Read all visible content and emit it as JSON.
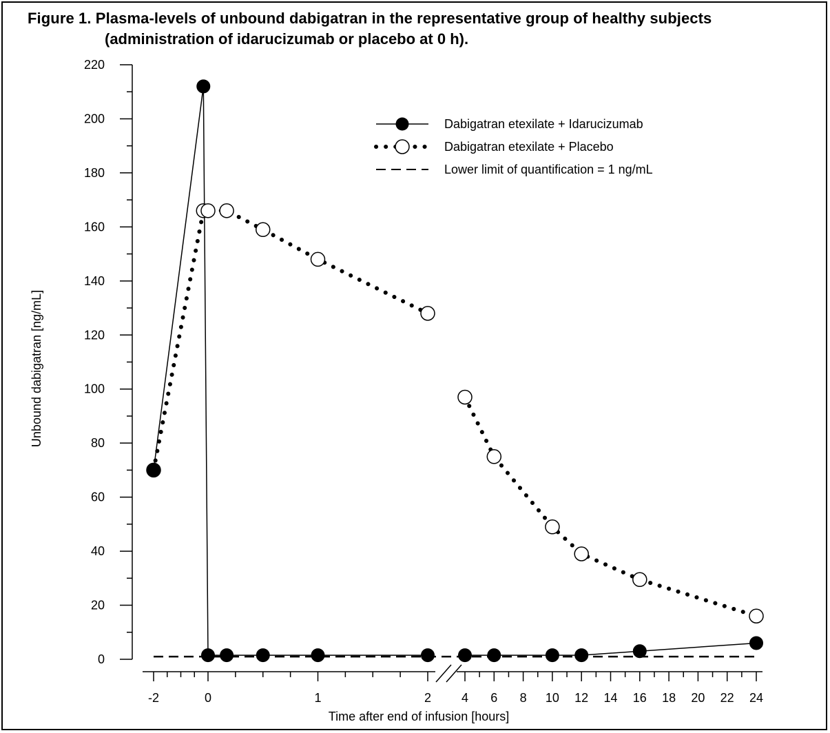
{
  "title_line1": "Figure 1. Plasma-levels of unbound dabigatran in the representative group of healthy subjects",
  "title_line2": "(administration of idarucizumab or placebo at 0 h).",
  "chart_data": {
    "type": "line",
    "title": "Figure 1. Plasma-levels of unbound dabigatran in the representative group of healthy subjects (administration of idarucizumab or placebo at 0 h).",
    "xlabel": "Time after end of infusion [hours]",
    "ylabel": "Unbound dabigatran [ng/mL]",
    "ylim": [
      0,
      220
    ],
    "y_ticks": [
      0,
      20,
      40,
      60,
      80,
      100,
      120,
      140,
      160,
      180,
      200,
      220
    ],
    "x_axis_broken": true,
    "x_break_between": [
      2,
      4
    ],
    "x_ticks_left": [
      -2,
      0,
      1,
      2
    ],
    "x_ticks_right": [
      4,
      6,
      8,
      10,
      12,
      14,
      16,
      18,
      20,
      22,
      24
    ],
    "grid": false,
    "legend_position": "top-right",
    "series": [
      {
        "name": "Dabigatran etexilate + Idarucizumab",
        "marker": "filled-circle",
        "line": "solid",
        "x": [
          -2,
          -0.17,
          0,
          0.17,
          0.5,
          1,
          2,
          4,
          6,
          10,
          12,
          16,
          24
        ],
        "values": [
          70,
          212,
          1.5,
          1.5,
          1.5,
          1.5,
          1.5,
          1.5,
          1.5,
          1.5,
          1.5,
          3,
          6
        ]
      },
      {
        "name": "Dabigatran etexilate + Placebo",
        "marker": "open-circle",
        "line": "dotted",
        "x": [
          -2,
          -0.17,
          0,
          0.17,
          0.5,
          1,
          2,
          4,
          6,
          10,
          12,
          16,
          24
        ],
        "values": [
          70,
          166,
          166,
          166,
          159,
          148,
          128,
          97,
          75,
          49,
          39,
          29.5,
          16
        ]
      },
      {
        "name": "Lower limit of quantification = 1 ng/mL",
        "marker": "none",
        "line": "dashed",
        "value": 1
      }
    ],
    "colors": {
      "line": "#000000",
      "open_fill": "#ffffff"
    }
  }
}
